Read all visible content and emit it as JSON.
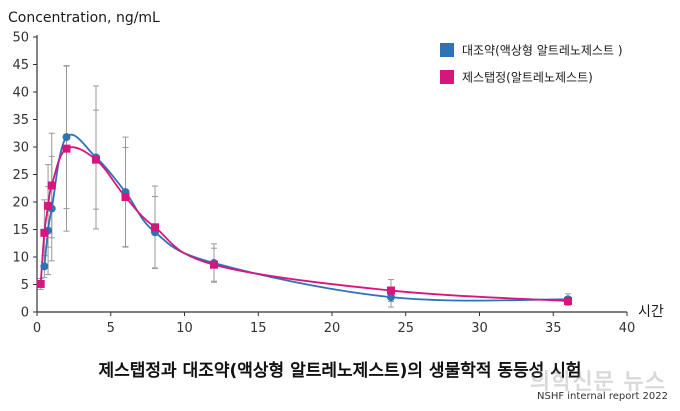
{
  "chart_data": {
    "type": "line",
    "ylabel": "Concentration, ng/mL",
    "xlabel": "시간",
    "xlim": [
      0,
      40
    ],
    "ylim": [
      0,
      50
    ],
    "xticks": [
      0,
      5,
      10,
      15,
      20,
      25,
      30,
      35,
      40
    ],
    "yticks": [
      0,
      5,
      10,
      15,
      20,
      25,
      30,
      35,
      40,
      45,
      50
    ],
    "legend_position": "top-right",
    "grid": false,
    "series": [
      {
        "name": "대조약(액상형 알트레노제스트 )",
        "color": "#2e74b5",
        "marker": "circle",
        "x": [
          0.5,
          0.75,
          1,
          2,
          4,
          6,
          8,
          12,
          24,
          36
        ],
        "y": [
          8.3,
          14.8,
          18.8,
          31.8,
          28.1,
          21.8,
          14.5,
          8.9,
          2.7,
          2.3
        ],
        "err": [
          2.0,
          8.0,
          9.5,
          13.0,
          13.0,
          10.0,
          6.5,
          3.5,
          1.8,
          1.0
        ]
      },
      {
        "name": "제스탭정(알트레노제스트)",
        "color": "#d6157f",
        "marker": "square",
        "x": [
          0.25,
          0.5,
          0.75,
          1,
          2,
          4,
          6,
          8,
          12,
          24,
          36
        ],
        "y": [
          5.1,
          14.4,
          19.3,
          23.0,
          29.7,
          27.7,
          20.9,
          15.4,
          8.6,
          3.9,
          2.0
        ],
        "err": [
          1.0,
          6.0,
          7.5,
          9.5,
          15.0,
          9.0,
          9.0,
          7.5,
          3.0,
          2.0,
          0.8
        ]
      }
    ]
  },
  "caption": "제스탭정과 대조약(액상형 알트레노제스트)의 생물학적 동등성 시험",
  "watermark": "의학신문 뉴스",
  "source": "NSHF internal report 2022"
}
